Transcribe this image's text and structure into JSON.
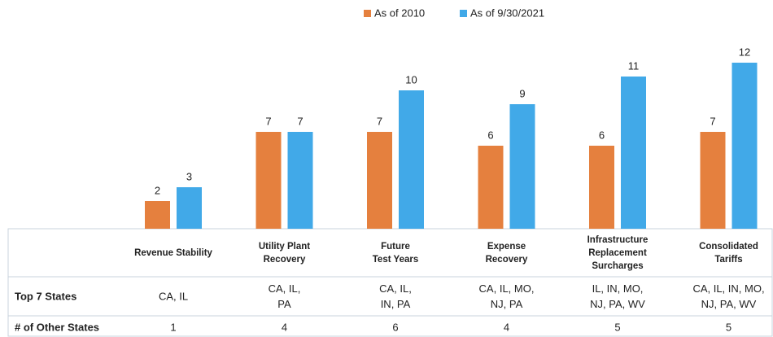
{
  "chart_data": {
    "type": "bar",
    "categories": [
      [
        "Revenue Stability"
      ],
      [
        "Utility Plant",
        "Recovery"
      ],
      [
        "Future",
        "Test Years"
      ],
      [
        "Expense",
        "Recovery"
      ],
      [
        "Infrastructure",
        "Replacement",
        "Surcharges"
      ],
      [
        "Consolidated",
        "Tariffs"
      ]
    ],
    "series": [
      {
        "name": "As of 2010",
        "color": "#e5803e",
        "values": [
          2,
          7,
          7,
          6,
          6,
          7
        ]
      },
      {
        "name": "As of 9/30/2021",
        "color": "#41a9e8",
        "values": [
          3,
          7,
          10,
          9,
          11,
          12
        ]
      }
    ]
  },
  "table": {
    "rows": [
      {
        "label": "Top 7 States",
        "cells": [
          [
            "CA, IL"
          ],
          [
            "CA, IL,",
            "PA"
          ],
          [
            "CA, IL,",
            "IN, PA"
          ],
          [
            "CA, IL, MO,",
            "NJ, PA"
          ],
          [
            "IL, IN, MO,",
            "NJ, PA, WV"
          ],
          [
            "CA, IL, IN, MO,",
            "NJ, PA, WV"
          ]
        ]
      },
      {
        "label": "# of Other States",
        "cells": [
          [
            "1"
          ],
          [
            "4"
          ],
          [
            "6"
          ],
          [
            "4"
          ],
          [
            "5"
          ],
          [
            "5"
          ]
        ]
      }
    ]
  }
}
